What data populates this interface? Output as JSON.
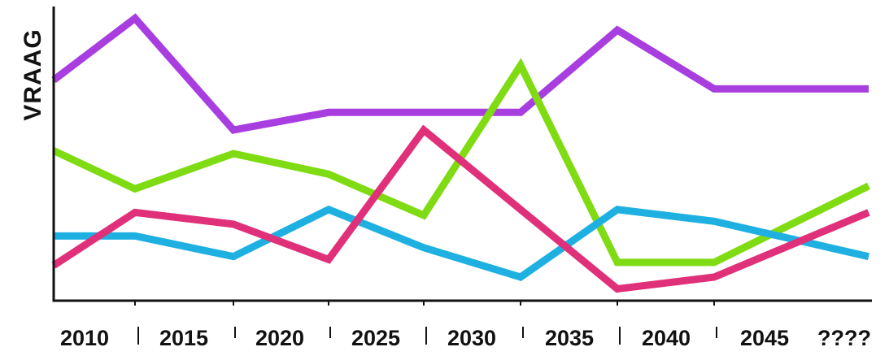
{
  "chart_data": {
    "type": "line",
    "ylabel": "VRAAG",
    "x_tick_labels": [
      "2010",
      "2015",
      "2020",
      "2025",
      "2030",
      "2035",
      "2040",
      "2045",
      "????"
    ],
    "ylim": [
      0,
      100
    ],
    "grid": false,
    "legend": "none",
    "series": [
      {
        "color": "#a83ee0",
        "values": [
          75,
          96,
          58,
          64,
          64,
          64,
          92,
          72,
          72
        ]
      },
      {
        "color": "#7fdb12",
        "values": [
          51,
          38,
          50,
          43,
          29,
          80,
          13,
          13,
          39
        ]
      },
      {
        "color": "#1fb0e2",
        "values": [
          22,
          22,
          15,
          31,
          18,
          8,
          31,
          27,
          15
        ]
      },
      {
        "color": "#e0307a",
        "values": [
          12,
          30,
          26,
          14,
          58,
          31,
          4,
          8,
          30
        ]
      }
    ]
  }
}
